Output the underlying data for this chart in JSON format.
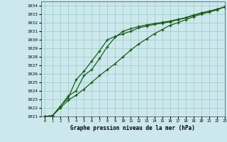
{
  "title": "Graphe pression niveau de la mer (hPa)",
  "bg_color": "#cce8ee",
  "grid_color": "#99ccbb",
  "line_color": "#1a5c1a",
  "xlim": [
    -0.5,
    23
  ],
  "ylim": [
    1021,
    1034.5
  ],
  "yticks": [
    1021,
    1022,
    1023,
    1024,
    1025,
    1026,
    1027,
    1028,
    1029,
    1030,
    1031,
    1032,
    1033,
    1034
  ],
  "xticks": [
    0,
    1,
    2,
    3,
    4,
    5,
    6,
    7,
    8,
    9,
    10,
    11,
    12,
    13,
    14,
    15,
    16,
    17,
    18,
    19,
    20,
    21,
    22,
    23
  ],
  "line1_x": [
    0,
    1,
    2,
    3,
    4,
    5,
    6,
    7,
    8,
    9,
    10,
    11,
    12,
    13,
    14,
    15,
    16,
    17,
    18,
    19,
    20,
    21,
    22,
    23
  ],
  "line1_y": [
    1021.0,
    1021.1,
    1022.2,
    1023.2,
    1025.3,
    1026.3,
    1027.5,
    1028.7,
    1030.0,
    1030.4,
    1030.7,
    1031.0,
    1031.4,
    1031.6,
    1031.8,
    1031.95,
    1032.1,
    1032.35,
    1032.55,
    1032.85,
    1033.15,
    1033.35,
    1033.55,
    1033.85
  ],
  "line2_x": [
    0,
    1,
    2,
    3,
    4,
    5,
    6,
    7,
    8,
    9,
    10,
    11,
    12,
    13,
    14,
    15,
    16,
    17,
    18,
    19,
    20,
    21,
    22,
    23
  ],
  "line2_y": [
    1021.0,
    1021.1,
    1022.2,
    1023.4,
    1024.0,
    1025.8,
    1026.5,
    1027.8,
    1029.2,
    1030.3,
    1031.0,
    1031.3,
    1031.55,
    1031.75,
    1031.9,
    1032.05,
    1032.2,
    1032.4,
    1032.6,
    1032.9,
    1033.15,
    1033.35,
    1033.6,
    1033.85
  ],
  "line3_x": [
    0,
    1,
    2,
    3,
    4,
    5,
    6,
    7,
    8,
    9,
    10,
    11,
    12,
    13,
    14,
    15,
    16,
    17,
    18,
    19,
    20,
    21,
    22,
    23
  ],
  "line3_y": [
    1021.0,
    1021.1,
    1022.0,
    1022.9,
    1023.5,
    1024.2,
    1025.0,
    1025.8,
    1026.5,
    1027.2,
    1028.0,
    1028.8,
    1029.5,
    1030.1,
    1030.7,
    1031.2,
    1031.7,
    1032.0,
    1032.35,
    1032.7,
    1033.0,
    1033.25,
    1033.5,
    1033.9
  ]
}
